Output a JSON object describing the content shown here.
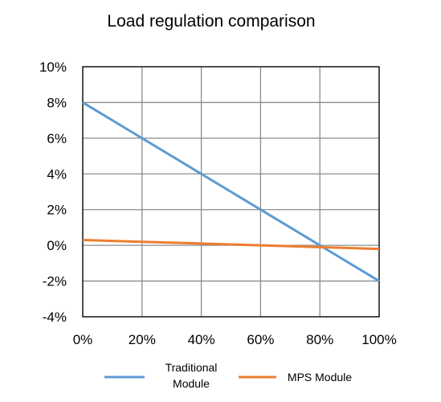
{
  "chart_data": {
    "type": "line",
    "title": "Load regulation comparison",
    "xlabel": "",
    "ylabel": "",
    "x": [
      0,
      20,
      40,
      60,
      80,
      100
    ],
    "x_tick_labels": [
      "0%",
      "20%",
      "40%",
      "60%",
      "80%",
      "100%"
    ],
    "y_tick_values": [
      10,
      8,
      6,
      4,
      2,
      0,
      -2,
      -4
    ],
    "y_tick_labels": [
      "10%",
      "8%",
      "6%",
      "4%",
      "2%",
      "0%",
      "-2%",
      "-4%"
    ],
    "xlim": [
      0,
      100
    ],
    "ylim": [
      -4,
      10
    ],
    "grid": true,
    "legend_position": "bottom",
    "series": [
      {
        "name_lines": [
          "Traditional",
          "Module"
        ],
        "color": "#5b9bd5",
        "values": [
          8,
          6,
          4,
          2,
          0,
          -2
        ]
      },
      {
        "name_lines": [
          "MPS Module"
        ],
        "color": "#ed7d31",
        "values": [
          0.3,
          0.2,
          0.1,
          0.0,
          -0.1,
          -0.2
        ]
      }
    ]
  }
}
